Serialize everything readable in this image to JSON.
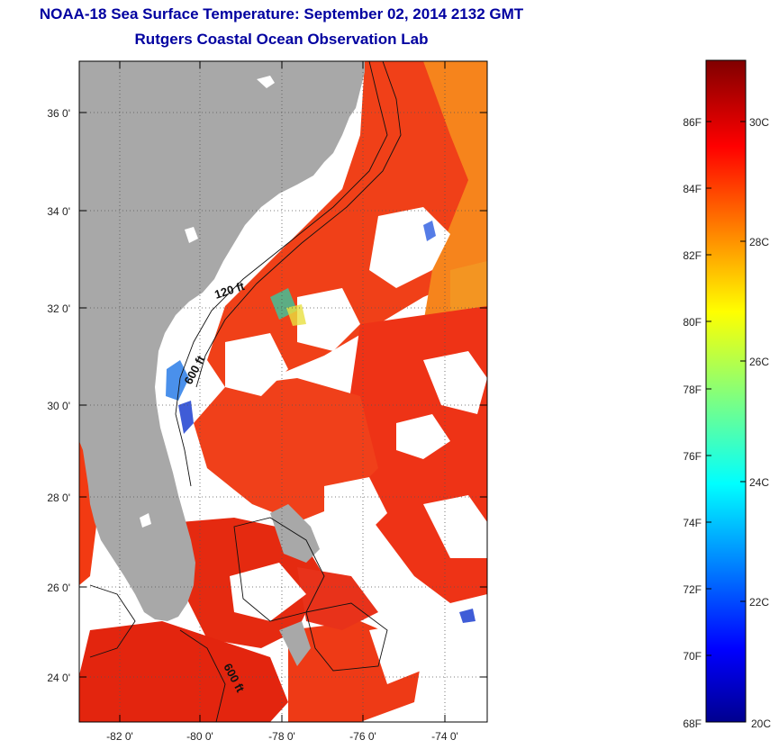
{
  "title": {
    "line1": "NOAA-18 Sea Surface Temperature:  September 02, 2014 2132 GMT",
    "line2": "Rutgers Coastal Ocean Observation Lab"
  },
  "map": {
    "lat_ticks": [
      "36 0'",
      "34 0'",
      "32 0'",
      "30 0'",
      "28 0'",
      "26 0'",
      "24 0'"
    ],
    "lon_ticks": [
      "-82 0'",
      "-80 0'",
      "-78 0'",
      "-76 0'",
      "-74 0'"
    ],
    "contour_labels": [
      "120 ft",
      "600 ft",
      "600 ft"
    ],
    "colors": {
      "land": "#a8a8a8",
      "cloud": "#ffffff",
      "warm_sst": "#f23a12",
      "hot_sst": "#dd1a0a",
      "mid_sst": "#f6841c"
    }
  },
  "colorbar": {
    "fahrenheit_labels": [
      "86F",
      "84F",
      "82F",
      "80F",
      "78F",
      "76F",
      "74F",
      "72F",
      "70F",
      "68F"
    ],
    "celsius_labels": [
      "30C",
      "28C",
      "26C",
      "24C",
      "22C",
      "20C"
    ],
    "range_c": [
      20,
      31.1
    ],
    "colormap": "jet"
  }
}
